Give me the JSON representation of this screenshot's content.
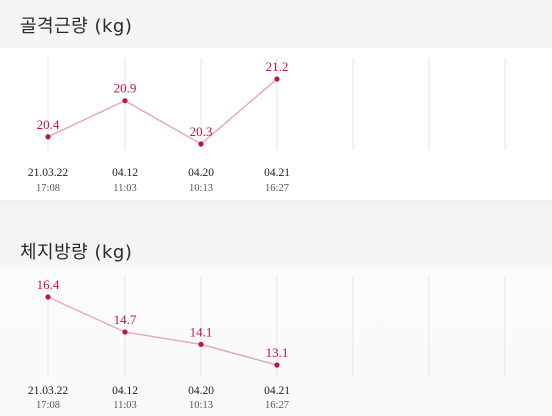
{
  "colors": {
    "accent": "#c0144e",
    "line": "#e7a9bd",
    "grid": "#e6e6e6"
  },
  "x_labels": [
    {
      "date": "21.03.22",
      "time": "17:08"
    },
    {
      "date": "04.12",
      "time": "11:03"
    },
    {
      "date": "04.20",
      "time": "10:13"
    },
    {
      "date": "04.21",
      "time": "16:27"
    }
  ],
  "chart_data": [
    {
      "type": "line",
      "title": "골격근량 (kg)",
      "categories": [
        "21.03.22 17:08",
        "04.12 11:03",
        "04.20 10:13",
        "04.21 16:27"
      ],
      "values": [
        20.4,
        20.9,
        20.3,
        21.2
      ],
      "ylim": [
        20.0,
        21.4
      ],
      "grid": true
    },
    {
      "type": "line",
      "title": "체지방량 (kg)",
      "categories": [
        "21.03.22 17:08",
        "04.12 11:03",
        "04.20 10:13",
        "04.21 16:27"
      ],
      "values": [
        16.4,
        14.7,
        14.1,
        13.1
      ],
      "ylim": [
        12.0,
        18.0
      ],
      "grid": true
    }
  ]
}
